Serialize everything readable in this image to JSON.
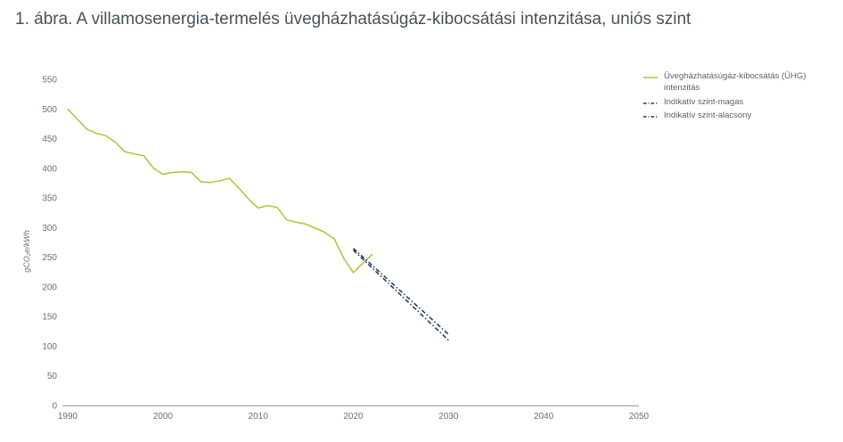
{
  "page_title": "1. ábra. A villamosenergia-termelés üvegházhatásúgáz-kibocsátási intenzitása, uniós szint",
  "colors": {
    "series_green": "#b3c034",
    "series_navy": "#17375e",
    "title_text": "#47525a",
    "axis_line": "#999999",
    "tick_label": "#6a7076",
    "legend_text": "#5a6268",
    "background": "#ffffff"
  },
  "chart_data": {
    "type": "line",
    "title": "1. ábra. A villamosenergia-termelés üvegházhatásúgáz-kibocsátási intenzitása, uniós szint",
    "xlabel": "",
    "ylabel": "gCO₂e/kWh",
    "xlim": [
      1990,
      2050
    ],
    "ylim": [
      0,
      550
    ],
    "x_ticks": [
      1990,
      2000,
      2010,
      2020,
      2030,
      2040,
      2050
    ],
    "y_ticks": [
      0,
      50,
      100,
      150,
      200,
      250,
      300,
      350,
      400,
      450,
      500,
      550
    ],
    "grid": false,
    "legend_position": "top-right",
    "axis_color": "#999999",
    "tick_color": "#6a7076",
    "series": [
      {
        "name": "Üvegházhatásúgáz-kibocsátás (ÜHG) intenzitás",
        "color": "#b3c034",
        "style": "solid",
        "x": [
          1990,
          1991,
          1992,
          1993,
          1994,
          1995,
          1996,
          1997,
          1998,
          1999,
          2000,
          2001,
          2002,
          2003,
          2004,
          2005,
          2006,
          2007,
          2008,
          2009,
          2010,
          2011,
          2012,
          2013,
          2014,
          2015,
          2016,
          2017,
          2018,
          2019,
          2020,
          2021,
          2022
        ],
        "values": [
          500,
          483,
          466,
          459,
          455,
          444,
          428,
          424,
          421,
          400,
          390,
          393,
          394,
          393,
          377,
          376,
          379,
          383,
          366,
          348,
          333,
          337,
          334,
          313,
          309,
          306,
          299,
          292,
          281,
          248,
          224,
          240,
          255
        ]
      },
      {
        "name": "Indikatív szint-magas",
        "color": "#17375e",
        "style": "dashed",
        "x": [
          2020,
          2030
        ],
        "values": [
          265,
          120
        ]
      },
      {
        "name": "Indikatív szint-alacsony",
        "color": "#17375e",
        "style": "dashed",
        "x": [
          2020,
          2030
        ],
        "values": [
          262,
          110
        ]
      }
    ]
  }
}
